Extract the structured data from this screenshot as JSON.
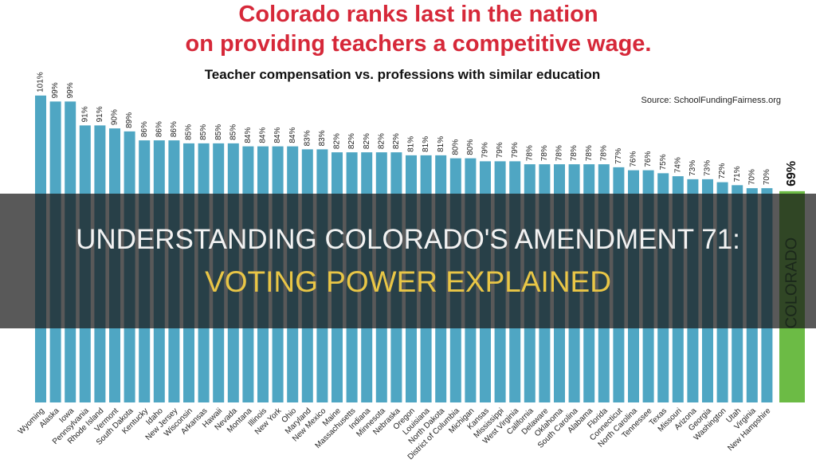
{
  "chart_data": {
    "type": "bar",
    "title": [
      "Colorado ranks last in the nation",
      "on providing teachers a competitive wage."
    ],
    "subtitle": "Teacher compensation vs. professions with similar education",
    "source": "Source: SchoolFundingFairness.org",
    "categories": [
      "Wyoming",
      "Alaska",
      "Iowa",
      "Pennsylvania",
      "Rhode Island",
      "Vermont",
      "South Dakota",
      "Kentucky",
      "Idaho",
      "New Jersey",
      "Wisconsin",
      "Arkansas",
      "Hawaii",
      "Nevada",
      "Montana",
      "Illinois",
      "New York",
      "Ohio",
      "Maryland",
      "New Mexico",
      "Maine",
      "Massachusetts",
      "Indiana",
      "Minnesota",
      "Nebraska",
      "Oregon",
      "Louisiana",
      "North Dakota",
      "District of Columbia",
      "Michigan",
      "Kansas",
      "Mississippi",
      "West Virginia",
      "California",
      "Delaware",
      "Oklahoma",
      "South Carolina",
      "Alabama",
      "Florida",
      "Connecticut",
      "North Carolina",
      "Tennessee",
      "Texas",
      "Missouri",
      "Arizona",
      "Georgia",
      "Washington",
      "Utah",
      "Virginia",
      "New Hampshire",
      "COLORADO"
    ],
    "values": [
      101,
      99,
      99,
      91,
      91,
      90,
      89,
      86,
      86,
      86,
      85,
      85,
      85,
      85,
      84,
      84,
      84,
      84,
      83,
      83,
      82,
      82,
      82,
      82,
      82,
      81,
      81,
      81,
      80,
      80,
      79,
      79,
      79,
      78,
      78,
      78,
      78,
      78,
      78,
      77,
      76,
      76,
      75,
      74,
      73,
      73,
      72,
      71,
      70,
      70,
      69
    ],
    "value_labels": [
      "101%",
      "99%",
      "99%",
      "91%",
      "91%",
      "90%",
      "89%",
      "86%",
      "86%",
      "86%",
      "85%",
      "85%",
      "85%",
      "85%",
      "84%",
      "84%",
      "84%",
      "84%",
      "83%",
      "83%",
      "82%",
      "82%",
      "82%",
      "82%",
      "82%",
      "81%",
      "81%",
      "81%",
      "80%",
      "80%",
      "79%",
      "79%",
      "79%",
      "78%",
      "78%",
      "78%",
      "78%",
      "78%",
      "78%",
      "77%",
      "76%",
      "76%",
      "75%",
      "74%",
      "73%",
      "73%",
      "72%",
      "71%",
      "70%",
      "70%",
      "69%"
    ],
    "colors": [
      "#4fa6c3",
      "#4fa6c3",
      "#4fa6c3",
      "#4fa6c3",
      "#4fa6c3",
      "#4fa6c3",
      "#4fa6c3",
      "#4fa6c3",
      "#4fa6c3",
      "#4fa6c3",
      "#4fa6c3",
      "#4fa6c3",
      "#4fa6c3",
      "#4fa6c3",
      "#4fa6c3",
      "#4fa6c3",
      "#4fa6c3",
      "#4fa6c3",
      "#4fa6c3",
      "#4fa6c3",
      "#4fa6c3",
      "#4fa6c3",
      "#4fa6c3",
      "#4fa6c3",
      "#4fa6c3",
      "#4fa6c3",
      "#4fa6c3",
      "#4fa6c3",
      "#4fa6c3",
      "#4fa6c3",
      "#4fa6c3",
      "#4fa6c3",
      "#4fa6c3",
      "#4fa6c3",
      "#4fa6c3",
      "#4fa6c3",
      "#4fa6c3",
      "#4fa6c3",
      "#4fa6c3",
      "#4fa6c3",
      "#4fa6c3",
      "#4fa6c3",
      "#4fa6c3",
      "#4fa6c3",
      "#4fa6c3",
      "#4fa6c3",
      "#4fa6c3",
      "#4fa6c3",
      "#4fa6c3",
      "#4fa6c3",
      "#6cbb45"
    ]
  },
  "overlay": {
    "line1": "UNDERSTANDING COLORADO'S AMENDMENT 71:",
    "line2": "VOTING POWER EXPLAINED"
  }
}
